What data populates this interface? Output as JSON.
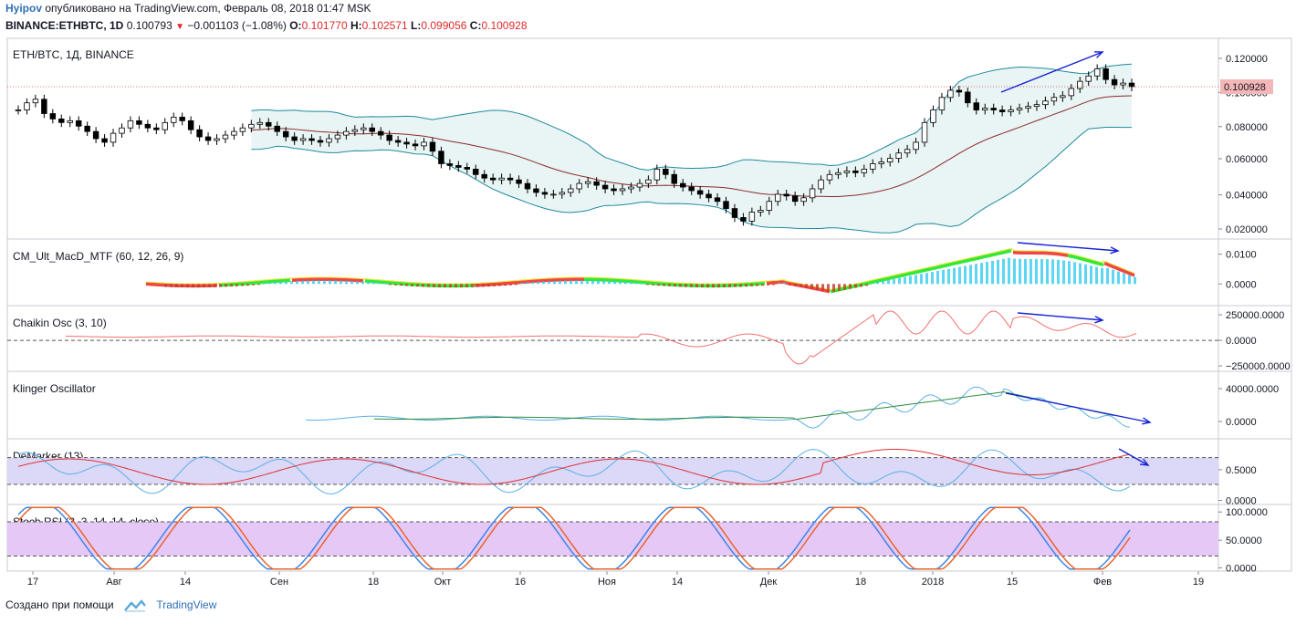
{
  "header": {
    "author": "Hyipov",
    "published_text": "опубликовано на TradingView.com, Февраль 08, 2018 01:47 MSK",
    "symbol_line": "BINANCE:ETHBTC, 1D",
    "last": "0.100793",
    "change": "−0.001103 (−1.08%)",
    "o_label": "O:",
    "o_value": "0.101770",
    "h_label": "H:",
    "h_value": "0.102571",
    "l_label": "L:",
    "l_value": "0.099056",
    "c_label": "C:",
    "c_value": "0.100928"
  },
  "footer": {
    "created_with": "Создано при помощи",
    "brand": "TradingView"
  },
  "colors": {
    "up": "#ffffff",
    "down": "#000000",
    "bb_band": "#1f8a9c",
    "bb_fill": "#e9f4f4",
    "bb_basis": "#8b2a2a",
    "blue_arrow": "#1522d4",
    "price_tag": "#f4b6b6",
    "macd_pos": "#33e839",
    "macd_neg": "#f24545",
    "stoch_fill": "#e6c8f7",
    "demarker_fill": "#dcd8f7"
  },
  "x_axis": {
    "labels": [
      "17",
      "Авг",
      "14",
      "Сен",
      "18",
      "Окт",
      "16",
      "Ноя",
      "14",
      "Дек",
      "18",
      "2018",
      "15",
      "Фев",
      "19"
    ]
  },
  "chart_data": [
    {
      "type": "candlestick",
      "title": "ETH/BTC, 1Д, BINANCE",
      "overlay": "BB (20, close, 2)",
      "y_ticks": [
        "0.120000",
        "0.100000",
        "0.080000",
        "0.060000",
        "0.040000",
        "0.020000"
      ],
      "ylim": [
        0.016,
        0.128
      ],
      "last_price_label": "0.100928",
      "close_series": [
        0.088,
        0.092,
        0.094,
        0.086,
        0.083,
        0.081,
        0.082,
        0.079,
        0.076,
        0.072,
        0.07,
        0.075,
        0.078,
        0.082,
        0.08,
        0.078,
        0.077,
        0.081,
        0.084,
        0.082,
        0.077,
        0.073,
        0.071,
        0.072,
        0.074,
        0.076,
        0.078,
        0.08,
        0.081,
        0.079,
        0.076,
        0.073,
        0.071,
        0.072,
        0.071,
        0.07,
        0.072,
        0.074,
        0.076,
        0.077,
        0.078,
        0.076,
        0.074,
        0.071,
        0.07,
        0.069,
        0.068,
        0.07,
        0.065,
        0.058,
        0.057,
        0.056,
        0.055,
        0.052,
        0.05,
        0.049,
        0.05,
        0.049,
        0.047,
        0.044,
        0.042,
        0.041,
        0.041,
        0.042,
        0.044,
        0.047,
        0.048,
        0.046,
        0.044,
        0.043,
        0.044,
        0.045,
        0.047,
        0.049,
        0.055,
        0.052,
        0.047,
        0.045,
        0.043,
        0.041,
        0.039,
        0.037,
        0.033,
        0.028,
        0.026,
        0.031,
        0.032,
        0.037,
        0.041,
        0.04,
        0.037,
        0.039,
        0.044,
        0.049,
        0.052,
        0.053,
        0.054,
        0.053,
        0.055,
        0.058,
        0.059,
        0.061,
        0.064,
        0.066,
        0.07,
        0.081,
        0.088,
        0.095,
        0.099,
        0.098,
        0.092,
        0.088,
        0.089,
        0.088,
        0.087,
        0.088,
        0.089,
        0.09,
        0.091,
        0.093,
        0.095,
        0.096,
        0.1,
        0.104,
        0.107,
        0.111,
        0.105,
        0.102,
        0.103,
        0.101
      ]
    },
    {
      "type": "line",
      "title": "CM_Ult_MacD_MTF (60, 12, 26, 9)",
      "y_ticks": [
        "0.0100",
        "0.0000"
      ],
      "ylim": [
        -0.0075,
        0.014
      ]
    },
    {
      "type": "line",
      "title": "Chaikin Osc (3, 10)",
      "y_ticks": [
        "250000.0000",
        "0.0000",
        "−250000.0000"
      ],
      "ylim": [
        -280000,
        290000
      ]
    },
    {
      "type": "line",
      "title": "Klinger Oscillator",
      "y_ticks": [
        "40000.0000",
        "0.0000"
      ],
      "ylim": [
        -14000,
        55000
      ]
    },
    {
      "type": "line",
      "title": "DeMarker (13)",
      "subtitle": "SMMA (7, DeMarker)",
      "y_ticks": [
        "0.5000",
        "0.0000"
      ],
      "ylim": [
        -0.02,
        0.98
      ]
    },
    {
      "type": "line",
      "title": "Stoch RSI (3, 3, 14, 14, close)",
      "y_ticks": [
        "100.0000",
        "50.0000",
        "0.0000"
      ],
      "ylim": [
        -5,
        105
      ]
    }
  ]
}
